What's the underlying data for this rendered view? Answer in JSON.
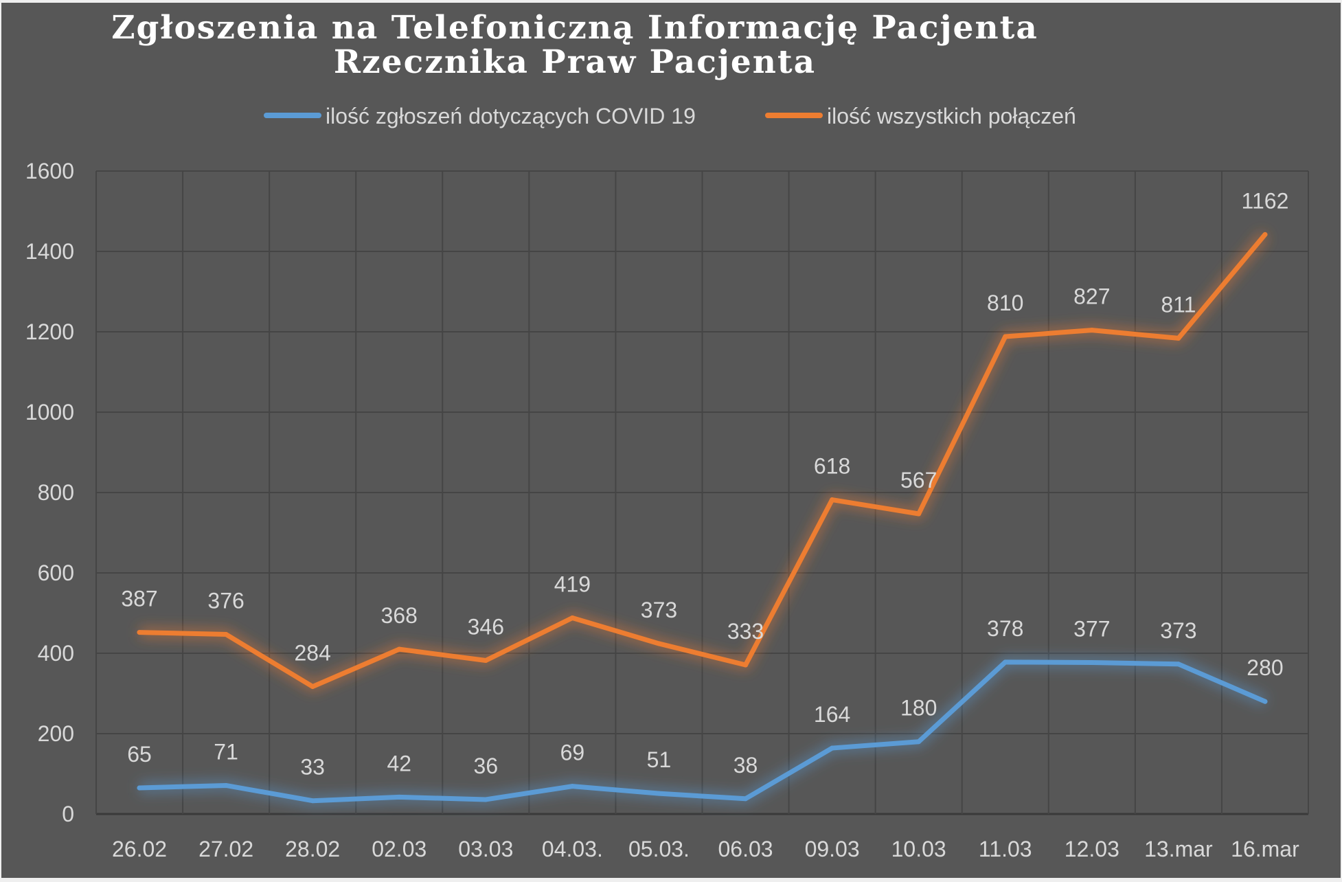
{
  "chart_data": {
    "type": "line",
    "stacked": true,
    "title_lines": [
      "Zgłoszenia na Telefoniczną Informację Pacjenta",
      "Rzecznika Praw Pacjenta"
    ],
    "xlabel": "",
    "ylabel": "",
    "categories": [
      "26.02",
      "27.02",
      "28.02",
      "02.03",
      "03.03",
      "04.03.",
      "05.03.",
      "06.03",
      "09.03",
      "10.03",
      "11.03",
      "12.03",
      "13.mar",
      "16.mar"
    ],
    "ylim": [
      0,
      1600
    ],
    "yticks": [
      0,
      200,
      400,
      600,
      800,
      1000,
      1200,
      1400,
      1600
    ],
    "grid": true,
    "legend_position": "top",
    "series": [
      {
        "name": "ilość zgłoszeń dotyczących COVID 19",
        "color": "#5b9bd5",
        "values": [
          65,
          71,
          33,
          42,
          36,
          69,
          51,
          38,
          164,
          180,
          378,
          377,
          373,
          280
        ]
      },
      {
        "name": "ilość wszystkich połączeń",
        "color": "#ed7d31",
        "values": [
          387,
          376,
          284,
          368,
          346,
          419,
          373,
          333,
          618,
          567,
          810,
          827,
          811,
          1162
        ]
      }
    ],
    "background": "#575757"
  }
}
